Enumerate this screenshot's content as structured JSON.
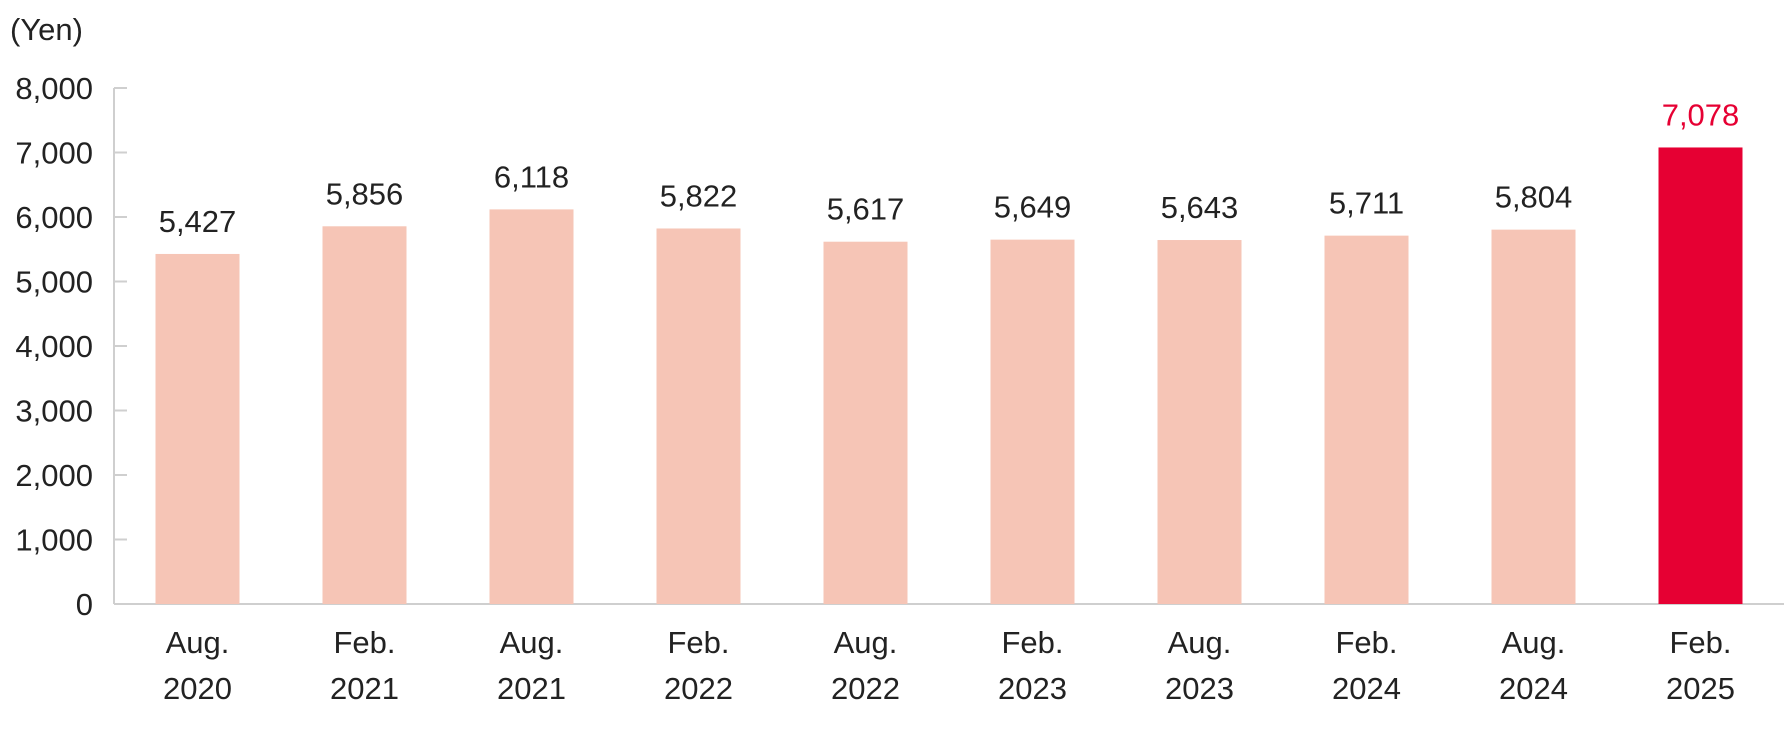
{
  "chart_data": {
    "type": "bar",
    "title": "",
    "xlabel": "",
    "ylabel": "(Yen)",
    "ylim": [
      0,
      8000
    ],
    "yticks": [
      0,
      1000,
      2000,
      3000,
      4000,
      5000,
      6000,
      7000,
      8000
    ],
    "ytick_labels": [
      "0",
      "1,000",
      "2,000",
      "3,000",
      "4,000",
      "5,000",
      "6,000",
      "7,000",
      "8,000"
    ],
    "grid": false,
    "legend": "none",
    "categories": [
      [
        "Aug.",
        "2020"
      ],
      [
        "Feb.",
        "2021"
      ],
      [
        "Aug.",
        "2021"
      ],
      [
        "Feb.",
        "2022"
      ],
      [
        "Aug.",
        "2022"
      ],
      [
        "Feb.",
        "2023"
      ],
      [
        "Aug.",
        "2023"
      ],
      [
        "Feb.",
        "2024"
      ],
      [
        "Aug.",
        "2024"
      ],
      [
        "Feb.",
        "2025"
      ]
    ],
    "values": [
      5427,
      5856,
      6118,
      5822,
      5617,
      5649,
      5643,
      5711,
      5804,
      7078
    ],
    "value_labels": [
      "5,427",
      "5,856",
      "6,118",
      "5,822",
      "5,617",
      "5,649",
      "5,643",
      "5,711",
      "5,804",
      "7,078"
    ],
    "highlight_index": 9,
    "colors": {
      "bar": "#f6c5b6",
      "highlight_bar": "#e60033",
      "highlight_label": "#e60033",
      "text": "#222222",
      "axis": "#cfcfcf"
    }
  }
}
